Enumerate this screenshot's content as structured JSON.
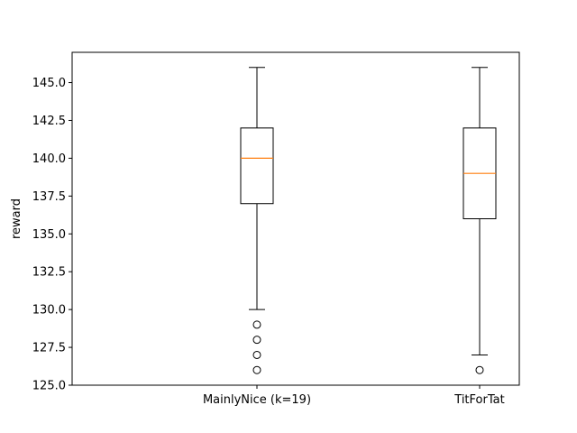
{
  "chart_data": {
    "type": "box",
    "ylabel": "reward",
    "xlabel": "",
    "ylim": [
      125.0,
      147.0
    ],
    "yticks": [
      "125.0",
      "127.5",
      "130.0",
      "132.5",
      "135.0",
      "137.5",
      "140.0",
      "142.5",
      "145.0"
    ],
    "categories": [
      "MainlyNice (k=19)",
      "TitForTat"
    ],
    "boxes": [
      {
        "category": "MainlyNice (k=19)",
        "whisker_low": 130,
        "q1": 137,
        "median": 140,
        "q3": 142,
        "whisker_high": 146,
        "outliers": [
          129,
          128,
          127,
          126
        ]
      },
      {
        "category": "TitForTat",
        "whisker_low": 127,
        "q1": 136,
        "median": 139,
        "q3": 142,
        "whisker_high": 146,
        "outliers": [
          126
        ]
      }
    ],
    "colors": {
      "box": "#000000",
      "median": "#ff7f0e",
      "outlier": "#000000"
    }
  }
}
